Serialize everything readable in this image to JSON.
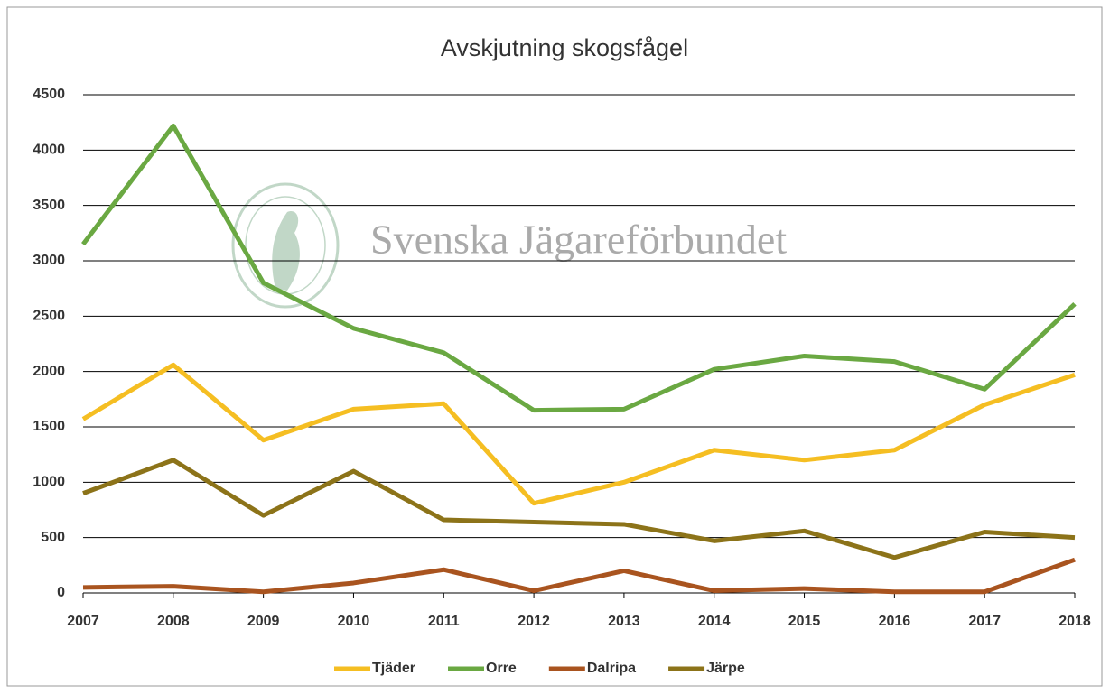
{
  "chart_data": {
    "type": "line",
    "title": "Avskjutning skogsfågel",
    "watermark": "Svenska Jägareförbundet",
    "categories": [
      "2007",
      "2008",
      "2009",
      "2010",
      "2011",
      "2012",
      "2013",
      "2014",
      "2015",
      "2016",
      "2017",
      "2018"
    ],
    "series": [
      {
        "name": "Tjäder",
        "color": "#f5be22",
        "values": [
          1570,
          2060,
          1380,
          1660,
          1710,
          810,
          1000,
          1290,
          1200,
          1290,
          1700,
          1970
        ]
      },
      {
        "name": "Orre",
        "color": "#6aa842",
        "values": [
          3150,
          4220,
          2800,
          2390,
          2170,
          1650,
          1660,
          2020,
          2140,
          2090,
          1840,
          2610
        ]
      },
      {
        "name": "Dalripa",
        "color": "#a9541f",
        "values": [
          50,
          60,
          10,
          90,
          210,
          20,
          200,
          20,
          40,
          10,
          10,
          300
        ]
      },
      {
        "name": "Järpe",
        "color": "#8c7319",
        "values": [
          900,
          1200,
          700,
          1100,
          660,
          640,
          620,
          470,
          560,
          320,
          550,
          500
        ]
      }
    ],
    "ylim": [
      0,
      4500
    ],
    "yticks": [
      0,
      500,
      1000,
      1500,
      2000,
      2500,
      3000,
      3500,
      4000,
      4500
    ],
    "grid": true,
    "legend": "bottom"
  }
}
